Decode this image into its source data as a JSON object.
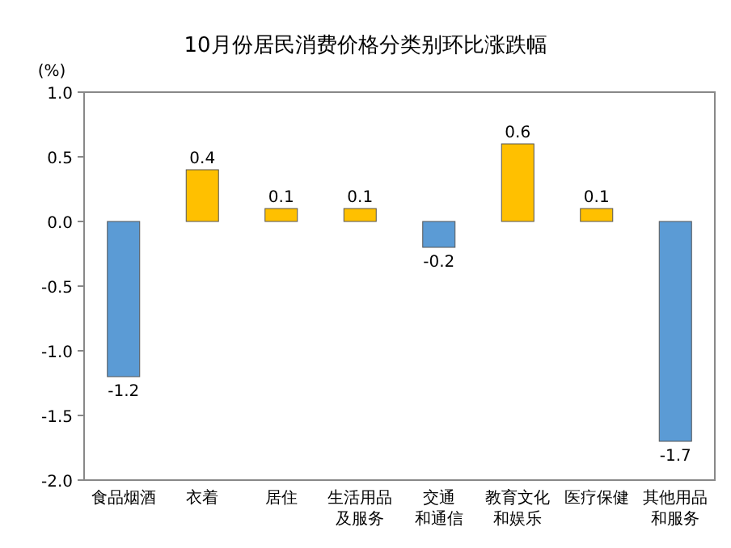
{
  "chart_data": {
    "type": "bar",
    "title": "10月份居民消费价格分类别环比涨跌幅",
    "ylabel": "(%)",
    "categories": [
      "食品烟酒",
      "衣着",
      "居住",
      "生活用品及服务",
      "交通和通信",
      "教育文化和娱乐",
      "医疗保健",
      "其他用品和服务"
    ],
    "values": [
      -1.2,
      0.4,
      0.1,
      0.1,
      -0.2,
      0.6,
      0.1,
      -1.7
    ],
    "colors": [
      "#5b9bd5",
      "#ffc000",
      "#ffc000",
      "#ffc000",
      "#5b9bd5",
      "#ffc000",
      "#ffc000",
      "#5b9bd5"
    ],
    "ylim": [
      -2.0,
      1.0
    ],
    "yticks": [
      {
        "value": -2.0,
        "label": "-2.0"
      },
      {
        "value": -1.5,
        "label": "-1.5"
      },
      {
        "value": -1.0,
        "label": "-1.0"
      },
      {
        "value": -0.5,
        "label": "-0.5"
      },
      {
        "value": 0,
        "label": "0.0"
      },
      {
        "value": 0.5,
        "label": "0.5"
      },
      {
        "value": 1.0,
        "label": "1.0"
      }
    ],
    "data_labels": true,
    "grid": false
  }
}
